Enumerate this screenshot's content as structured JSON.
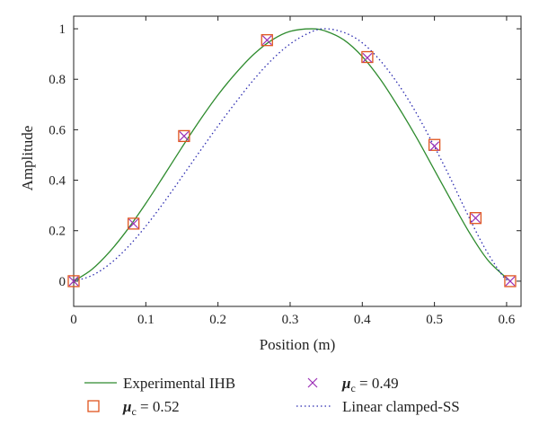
{
  "chart_data": {
    "type": "line",
    "xlabel": "Position (m)",
    "ylabel": "Amplitude",
    "xlim": [
      0,
      0.62
    ],
    "ylim": [
      -0.1,
      1.05
    ],
    "xticks": [
      "0",
      "0.1",
      "0.2",
      "0.3",
      "0.4",
      "0.5",
      "0.6"
    ],
    "yticks": [
      "0",
      "0.2",
      "0.4",
      "0.6",
      "0.8",
      "1"
    ],
    "grid": false,
    "legend_position": "bottom",
    "series": [
      {
        "name": "Experimental IHB",
        "style": "solid-line",
        "color": "#2e8b2e",
        "x": [
          0,
          0.025,
          0.05,
          0.075,
          0.1,
          0.125,
          0.15,
          0.175,
          0.2,
          0.225,
          0.25,
          0.275,
          0.3,
          0.33,
          0.35,
          0.375,
          0.4,
          0.425,
          0.45,
          0.475,
          0.5,
          0.525,
          0.55,
          0.575,
          0.605
        ],
        "y": [
          0,
          0.046,
          0.117,
          0.206,
          0.308,
          0.418,
          0.53,
          0.638,
          0.738,
          0.825,
          0.9,
          0.956,
          0.99,
          1.0,
          0.99,
          0.955,
          0.89,
          0.8,
          0.69,
          0.57,
          0.44,
          0.31,
          0.185,
          0.08,
          0
        ]
      },
      {
        "name": "Linear clamped-SS",
        "style": "dotted-line",
        "color": "#2b2bb0",
        "x": [
          0,
          0.025,
          0.05,
          0.075,
          0.1,
          0.125,
          0.15,
          0.175,
          0.2,
          0.225,
          0.25,
          0.275,
          0.3,
          0.325,
          0.345,
          0.37,
          0.395,
          0.42,
          0.445,
          0.47,
          0.495,
          0.52,
          0.545,
          0.57,
          0.595,
          0.605
        ],
        "y": [
          0,
          0.022,
          0.068,
          0.135,
          0.218,
          0.312,
          0.413,
          0.515,
          0.615,
          0.71,
          0.8,
          0.878,
          0.94,
          0.982,
          1.0,
          0.99,
          0.955,
          0.89,
          0.8,
          0.69,
          0.56,
          0.42,
          0.27,
          0.13,
          0.02,
          0
        ]
      },
      {
        "name": "μc = 0.52",
        "style": "square-marker",
        "color": "#e0541e",
        "x": [
          0,
          0.083,
          0.153,
          0.268,
          0.407,
          0.5,
          0.557,
          0.605
        ],
        "y": [
          0,
          0.228,
          0.575,
          0.955,
          0.888,
          0.54,
          0.25,
          0
        ]
      },
      {
        "name": "μc = 0.49",
        "style": "x-marker",
        "color": "#9b30b5",
        "x": [
          0,
          0.083,
          0.153,
          0.268,
          0.407,
          0.5,
          0.557,
          0.605
        ],
        "y": [
          0,
          0.228,
          0.575,
          0.955,
          0.885,
          0.535,
          0.25,
          0
        ]
      }
    ],
    "legend": [
      {
        "label": "Experimental IHB",
        "symbol": "line",
        "series_index": 0
      },
      {
        "label_mu": "μ",
        "label_sub": "c",
        "label_rest": " = 0.49",
        "symbol": "x",
        "series_index": 3
      },
      {
        "label_mu": "μ",
        "label_sub": "c",
        "label_rest": " = 0.52",
        "symbol": "square",
        "series_index": 2
      },
      {
        "label": "Linear clamped-SS",
        "symbol": "dotted",
        "series_index": 1
      }
    ]
  }
}
